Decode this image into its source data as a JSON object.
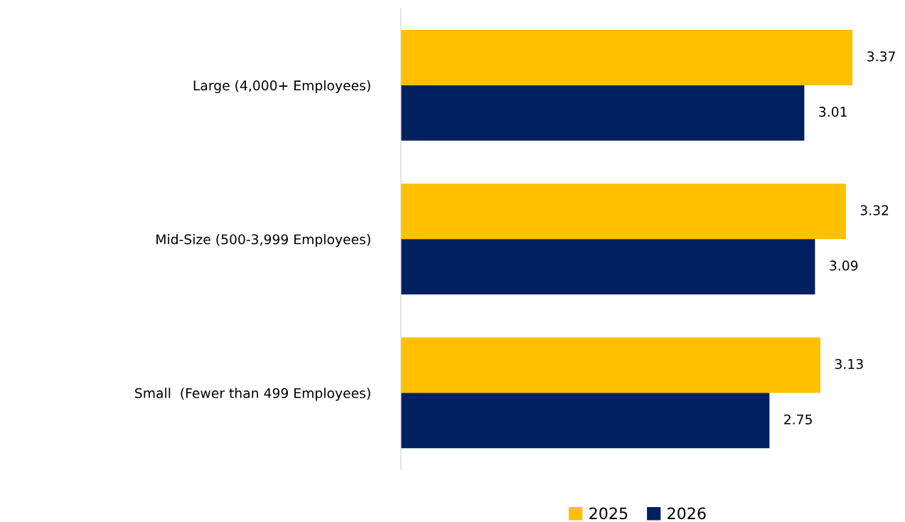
{
  "chart_data": {
    "type": "bar",
    "orientation": "horizontal",
    "categories": [
      "Large (4,000+ Employees)",
      "Mid-Size (500-3,999 Employees)",
      "Small  (Fewer than 499 Employees)"
    ],
    "series": [
      {
        "name": "2025",
        "color": "#ffc000",
        "values": [
          3.37,
          3.32,
          3.13
        ]
      },
      {
        "name": "2026",
        "color": "#002060",
        "values": [
          3.01,
          3.09,
          2.75
        ]
      }
    ],
    "data_labels": true,
    "legend": "bottom",
    "grid": false
  }
}
